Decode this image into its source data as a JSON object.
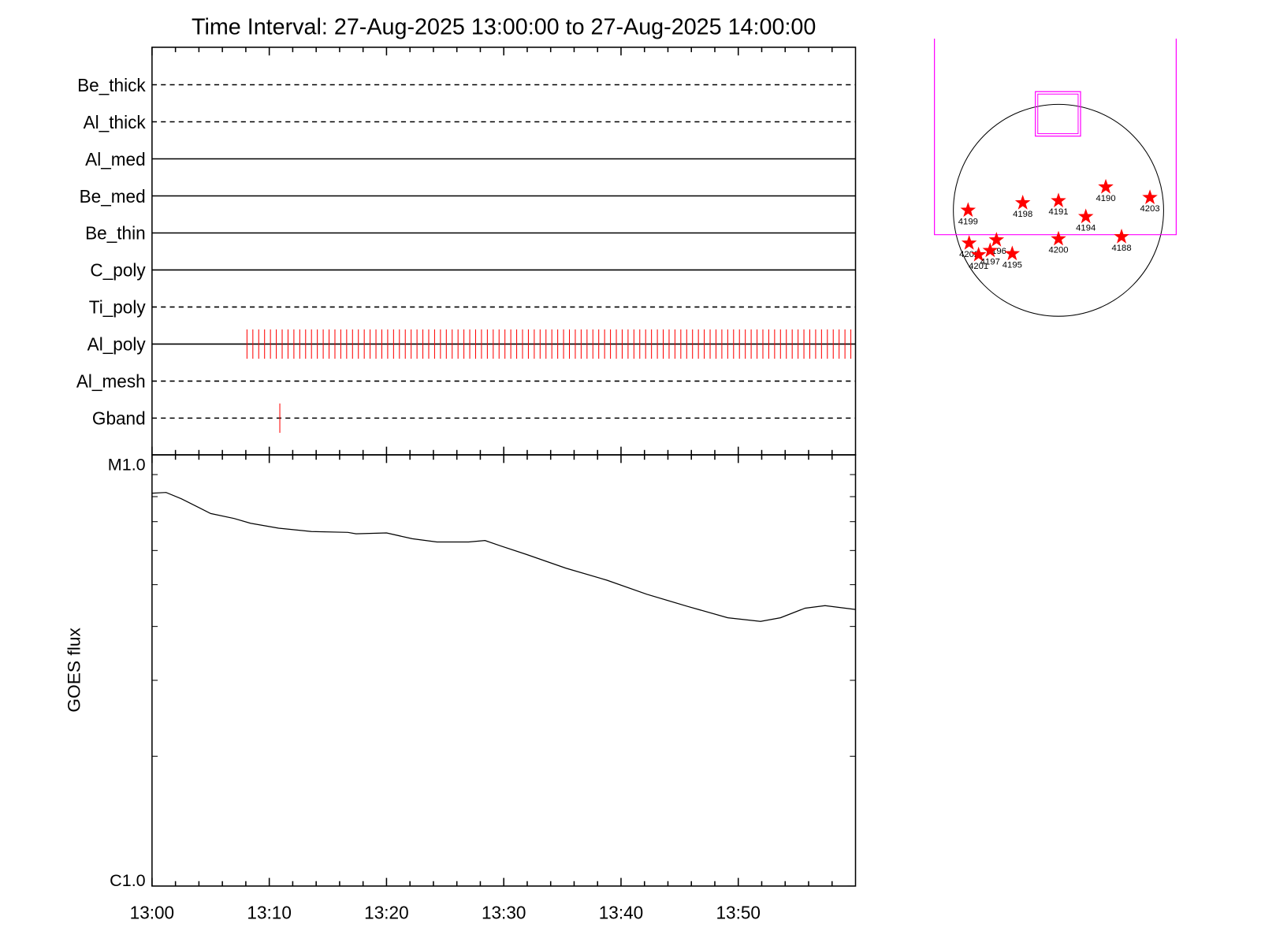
{
  "chart_data": [
    {
      "type": "timeline",
      "title": "Time Interval: 27-Aug-2025 13:00:00 to 27-Aug-2025 14:00:00",
      "xlim": [
        0,
        60
      ],
      "xticks": [
        0,
        10,
        20,
        30,
        40,
        50
      ],
      "xminor": [
        2,
        4,
        6,
        8,
        12,
        14,
        16,
        18,
        22,
        24,
        26,
        28,
        32,
        34,
        36,
        38,
        42,
        44,
        46,
        48,
        52,
        54,
        56,
        58
      ],
      "color": "#ff0000",
      "rows": [
        {
          "name": "Be_thick",
          "style": "dashed",
          "events": []
        },
        {
          "name": "Al_thick",
          "style": "dashed",
          "events": []
        },
        {
          "name": "Al_med",
          "style": "solid",
          "events": []
        },
        {
          "name": "Be_med",
          "style": "solid",
          "events": []
        },
        {
          "name": "Be_thin",
          "style": "solid",
          "events": []
        },
        {
          "name": "C_poly",
          "style": "solid",
          "events": []
        },
        {
          "name": "Ti_poly",
          "style": "dashed",
          "events": []
        },
        {
          "name": "Al_poly",
          "style": "solid",
          "events": [
            8.1,
            8.6,
            9.1,
            9.6,
            10.1,
            10.6,
            11.1,
            11.6,
            12.1,
            12.6,
            13.1,
            13.6,
            14.1,
            14.6,
            15.1,
            15.6,
            16.1,
            16.6,
            17.1,
            17.6,
            18.1,
            18.6,
            19.1,
            19.6,
            20.1,
            20.6,
            21.1,
            21.6,
            22.1,
            22.6,
            23.1,
            23.6,
            24.1,
            24.6,
            25.1,
            25.6,
            26.1,
            26.6,
            27.1,
            27.6,
            28.1,
            28.6,
            29.1,
            29.6,
            30.1,
            30.6,
            31.1,
            31.6,
            32.1,
            32.6,
            33.1,
            33.6,
            34.1,
            34.6,
            35.1,
            35.6,
            36.1,
            36.6,
            37.1,
            37.6,
            38.1,
            38.6,
            39.1,
            39.6,
            40.1,
            40.6,
            41.1,
            41.6,
            42.1,
            42.6,
            43.1,
            43.6,
            44.1,
            44.6,
            45.1,
            45.6,
            46.1,
            46.6,
            47.1,
            47.6,
            48.1,
            48.6,
            49.1,
            49.6,
            50.1,
            50.6,
            51.1,
            51.6,
            52.1,
            52.6,
            53.1,
            53.6,
            54.1,
            54.6,
            55.1,
            55.6,
            56.1,
            56.6,
            57.1,
            57.6,
            58.1,
            58.6,
            59.1,
            59.6
          ]
        },
        {
          "name": "Al_mesh",
          "style": "dashed",
          "events": []
        },
        {
          "name": "Gband",
          "style": "dashed",
          "events": [
            10.9
          ]
        }
      ]
    },
    {
      "type": "line",
      "ylabel": "GOES flux",
      "log_y": true,
      "color": "#000000",
      "xlim": [
        0,
        60
      ],
      "xticks": [
        {
          "value": 0,
          "label": "13:00"
        },
        {
          "value": 10,
          "label": "13:10"
        },
        {
          "value": 20,
          "label": "13:20"
        },
        {
          "value": 30,
          "label": "13:30"
        },
        {
          "value": 40,
          "label": "13:40"
        },
        {
          "value": 50,
          "label": "13:50"
        }
      ],
      "xminor": [
        2,
        4,
        6,
        8,
        12,
        14,
        16,
        18,
        22,
        24,
        26,
        28,
        32,
        34,
        36,
        38,
        42,
        44,
        46,
        48,
        52,
        54,
        56,
        58
      ],
      "ylim": [
        1e-06,
        1e-05
      ],
      "yticks": [
        {
          "value": 1e-06,
          "label": "C1.0"
        },
        {
          "value": 1e-05,
          "label": "M1.0"
        }
      ],
      "yminor": [
        2e-06,
        3e-06,
        4e-06,
        5e-06,
        6e-06,
        7e-06,
        8e-06,
        9e-06
      ],
      "x": [
        0,
        1.2,
        2.5,
        5,
        7,
        8.4,
        10.8,
        13.6,
        16.7,
        17.4,
        20,
        22.2,
        24.3,
        27,
        28.4,
        29.8,
        31.9,
        35.3,
        38.8,
        42.2,
        45.7,
        49.1,
        51.9,
        53.6,
        55.7,
        57.4,
        60
      ],
      "values": [
        8.15e-06,
        8.18e-06,
        7.91e-06,
        7.31e-06,
        7.12e-06,
        6.94e-06,
        6.76e-06,
        6.64e-06,
        6.61e-06,
        6.56e-06,
        6.59e-06,
        6.39e-06,
        6.28e-06,
        6.28e-06,
        6.33e-06,
        6.14e-06,
        5.88e-06,
        5.46e-06,
        5.12e-06,
        4.75e-06,
        4.45e-06,
        4.19e-06,
        4.11e-06,
        4.19e-06,
        4.41e-06,
        4.47e-06,
        4.38e-06
      ]
    },
    {
      "type": "scatter",
      "color": "#ff0000",
      "box_color": "#ff00ff",
      "labels": [
        "4199",
        "4198",
        "4191",
        "4190",
        "4203",
        "4194",
        "4188",
        "4200",
        "4202",
        "4201",
        "4196",
        "4197",
        "4195"
      ],
      "x": [
        -0.86,
        -0.34,
        0.0,
        0.45,
        0.87,
        0.26,
        0.6,
        0.0,
        -0.85,
        -0.76,
        -0.59,
        -0.65,
        -0.44
      ],
      "values": [
        0.0,
        0.07,
        0.09,
        0.22,
        0.12,
        -0.06,
        -0.25,
        -0.27,
        -0.31,
        -0.42,
        -0.28,
        -0.38,
        -0.41
      ],
      "boxes": [
        {
          "x": [
            -1.18,
            1.12
          ],
          "y": [
            -0.23,
            1.62
          ]
        },
        {
          "x": [
            -0.22,
            0.21
          ],
          "y": [
            0.7,
            1.12
          ]
        }
      ]
    }
  ]
}
